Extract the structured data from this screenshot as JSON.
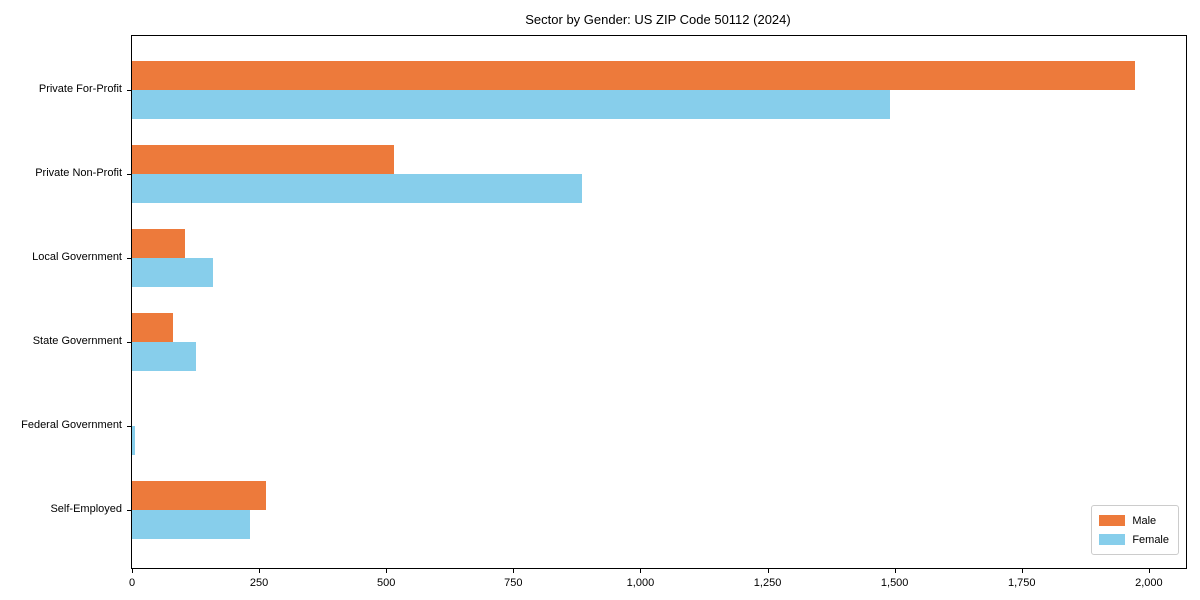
{
  "title": "Sector by Gender: US ZIP Code 50112 (2024)",
  "chart_data": {
    "type": "bar",
    "orientation": "horizontal",
    "title": "Sector by Gender: US ZIP Code 50112 (2024)",
    "xlabel": "",
    "ylabel": "",
    "categories": [
      "Private For-Profit",
      "Private Non-Profit",
      "Local Government",
      "State Government",
      "Federal Government",
      "Self-Employed"
    ],
    "series": [
      {
        "name": "Male",
        "color": "#ED7A3B",
        "values": [
          1973,
          515,
          105,
          80,
          0,
          264
        ]
      },
      {
        "name": "Female",
        "color": "#87CEEB",
        "values": [
          1490,
          886,
          160,
          125,
          6,
          232
        ]
      }
    ],
    "xlim": [
      0,
      2073
    ],
    "x_ticks": [
      0,
      250,
      500,
      750,
      1000,
      1250,
      1500,
      1750,
      2000
    ],
    "x_tick_labels": [
      "0",
      "250",
      "500",
      "750",
      "1,000",
      "1,250",
      "1,500",
      "1,750",
      "2,000"
    ],
    "grid": false,
    "legend": {
      "position": "lower right",
      "entries": [
        "Male",
        "Female"
      ]
    }
  }
}
